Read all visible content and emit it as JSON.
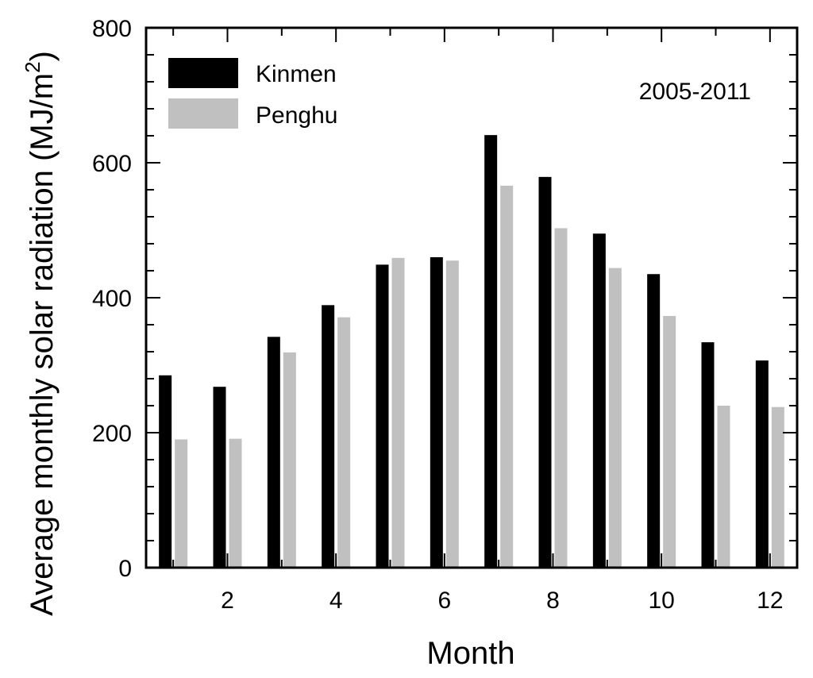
{
  "chart_data": {
    "type": "bar",
    "x": [
      1,
      2,
      3,
      4,
      5,
      6,
      7,
      8,
      9,
      10,
      11,
      12
    ],
    "series": [
      {
        "name": "Kinmen",
        "color": "#000000",
        "values": [
          285,
          268,
          342,
          389,
          449,
          460,
          641,
          579,
          495,
          435,
          334,
          307
        ]
      },
      {
        "name": "Penghu",
        "color": "#c0c0c0",
        "values": [
          190,
          191,
          319,
          371,
          459,
          455,
          566,
          503,
          444,
          373,
          240,
          238
        ]
      }
    ],
    "xlabel": "Month",
    "ylabel": "Average monthly solar radiation (MJ/m",
    "ylabel_superscript": "2",
    "ylabel_suffix": ")",
    "annotation": "2005-2011",
    "xlim": [
      0.5,
      12.5
    ],
    "ylim": [
      0,
      800
    ],
    "x_ticks": [
      2,
      4,
      6,
      8,
      10,
      12
    ],
    "y_ticks": [
      0,
      200,
      400,
      600,
      800
    ],
    "legend": "top-left",
    "grid": false
  }
}
